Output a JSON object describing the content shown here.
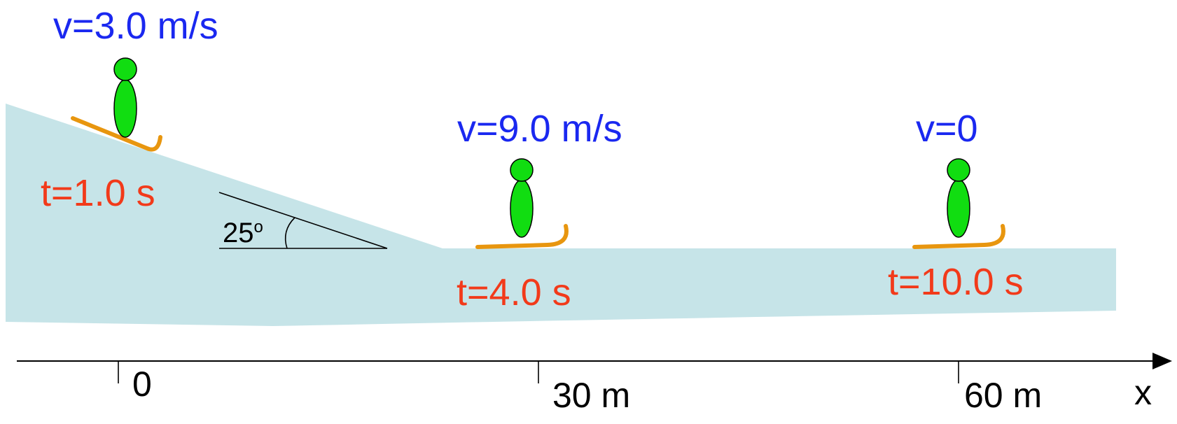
{
  "colors": {
    "snow": "#c6e4e8",
    "skier": "#11dd11",
    "ski": "#e8960f",
    "velocity_text": "#1a28f0",
    "time_text": "#f23a1a",
    "axis": "#000000"
  },
  "angle": {
    "value": "25",
    "unit": "o"
  },
  "skiers": [
    {
      "velocity": "v=3.0 m/s",
      "time": "t=1.0 s"
    },
    {
      "velocity": "v=9.0 m/s",
      "time": "t=4.0 s"
    },
    {
      "velocity": "v=0",
      "time": "t=10.0 s"
    }
  ],
  "axis": {
    "label": "x",
    "ticks": [
      {
        "value": 0,
        "label": "0"
      },
      {
        "value": 30,
        "label": "30 m"
      },
      {
        "value": 60,
        "label": "60 m"
      }
    ]
  }
}
